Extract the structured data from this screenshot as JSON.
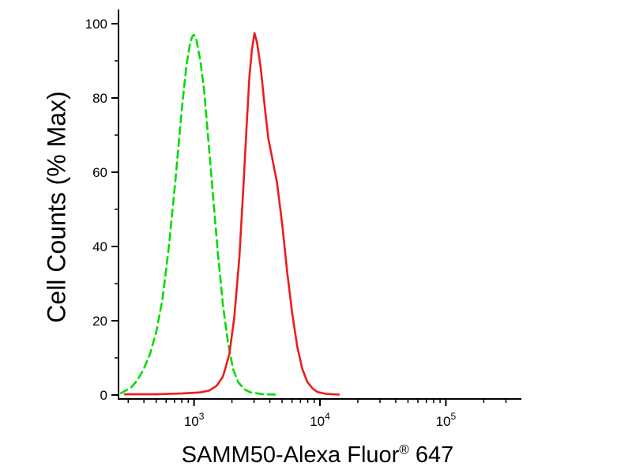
{
  "chart_data": {
    "type": "line",
    "chart_kind": "flow-cytometry-histogram",
    "title": "",
    "xlabel": {
      "main": "SAMM50-Alexa Fluor",
      "sup": "®",
      "suffix": " 647"
    },
    "ylabel": "Cell Counts (% Max)",
    "x_axis": {
      "scale": "log10",
      "lim_log": [
        2.4,
        5.6
      ],
      "major_ticks": [
        {
          "log": 3,
          "base": "10",
          "exp": "3"
        },
        {
          "log": 4,
          "base": "10",
          "exp": "4"
        },
        {
          "log": 5,
          "base": "10",
          "exp": "5"
        }
      ],
      "minor_ticks_log": [
        2.477,
        2.602,
        2.699,
        2.778,
        2.845,
        2.903,
        2.954,
        3.301,
        3.477,
        3.602,
        3.699,
        3.778,
        3.845,
        3.903,
        3.954,
        4.301,
        4.477,
        4.602,
        4.699,
        4.778,
        4.845,
        4.903,
        4.954,
        5.301,
        5.477
      ]
    },
    "y_axis": {
      "lim": [
        0,
        100
      ],
      "major_ticks": [
        0,
        20,
        40,
        60,
        80,
        100
      ],
      "minor_ticks": [
        10,
        30,
        50,
        70,
        90
      ]
    },
    "legend": "none",
    "grid": false,
    "series": [
      {
        "name": "control-dashed-green",
        "style": "dashed",
        "color": "#00dd00",
        "dash": "9 6",
        "points": [
          [
            2.42,
            0.5
          ],
          [
            2.5,
            2
          ],
          [
            2.55,
            4
          ],
          [
            2.6,
            7
          ],
          [
            2.65,
            11
          ],
          [
            2.7,
            17
          ],
          [
            2.75,
            26
          ],
          [
            2.8,
            40
          ],
          [
            2.85,
            57
          ],
          [
            2.9,
            76
          ],
          [
            2.94,
            89
          ],
          [
            2.97,
            95
          ],
          [
            2.99,
            96.8
          ],
          [
            3.0,
            97
          ],
          [
            3.02,
            95.5
          ],
          [
            3.05,
            90
          ],
          [
            3.08,
            82
          ],
          [
            3.11,
            70
          ],
          [
            3.15,
            54
          ],
          [
            3.19,
            38
          ],
          [
            3.23,
            24
          ],
          [
            3.27,
            14
          ],
          [
            3.31,
            7
          ],
          [
            3.35,
            3.5
          ],
          [
            3.4,
            1.5
          ],
          [
            3.45,
            0.7
          ],
          [
            3.55,
            0.2
          ],
          [
            3.65,
            0.1
          ]
        ]
      },
      {
        "name": "samm50-solid-red",
        "style": "solid",
        "color": "#ee1c1c",
        "dash": "",
        "points": [
          [
            2.45,
            0.2
          ],
          [
            2.7,
            0.2
          ],
          [
            2.9,
            0.4
          ],
          [
            3.05,
            0.7
          ],
          [
            3.12,
            1.2
          ],
          [
            3.18,
            2.5
          ],
          [
            3.23,
            5
          ],
          [
            3.28,
            11
          ],
          [
            3.32,
            21
          ],
          [
            3.36,
            37
          ],
          [
            3.39,
            55
          ],
          [
            3.42,
            74
          ],
          [
            3.44,
            86
          ],
          [
            3.46,
            93
          ],
          [
            3.48,
            97.5
          ],
          [
            3.5,
            95
          ],
          [
            3.53,
            88
          ],
          [
            3.56,
            78
          ],
          [
            3.59,
            69
          ],
          [
            3.62,
            64
          ],
          [
            3.66,
            57
          ],
          [
            3.7,
            46
          ],
          [
            3.74,
            33
          ],
          [
            3.78,
            22
          ],
          [
            3.82,
            13
          ],
          [
            3.86,
            7
          ],
          [
            3.9,
            3.5
          ],
          [
            3.94,
            1.8
          ],
          [
            3.98,
            0.8
          ],
          [
            4.05,
            0.3
          ],
          [
            4.15,
            0.1
          ]
        ]
      }
    ],
    "colors": {
      "axis": "#000000",
      "background": "#ffffff"
    }
  }
}
